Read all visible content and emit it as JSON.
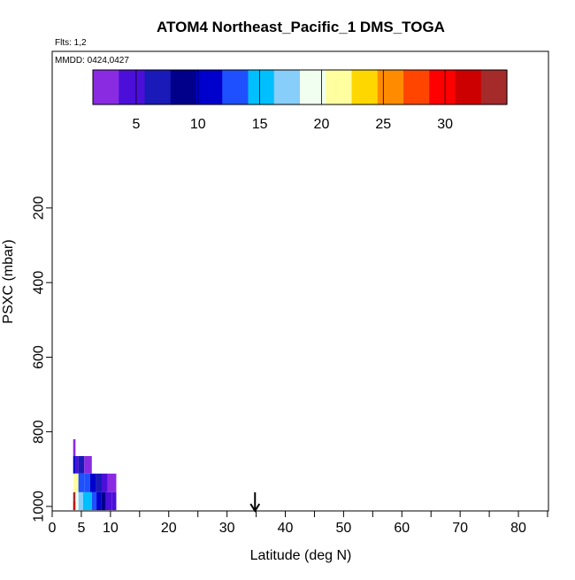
{
  "chart_data": {
    "type": "heatmap",
    "title": "ATOM4 Northeast_Pacific_1 DMS_TOGA",
    "flights_label": "Flts: 1,2",
    "dates_label": "MMDD: 0424,0427",
    "xlabel": "Latitude (deg N)",
    "ylabel": "PSXC (mbar)",
    "xlim": [
      0,
      85
    ],
    "ylim": [
      1010,
      0
    ],
    "x_ticks": [
      0,
      5,
      10,
      20,
      30,
      40,
      50,
      60,
      70,
      80
    ],
    "x_minor_ticks": [
      15,
      25,
      35,
      45,
      55,
      65,
      75,
      85
    ],
    "y_ticks": [
      200,
      400,
      600,
      800,
      1000
    ],
    "colorbar": {
      "range": [
        1.5,
        35
      ],
      "ticks": [
        5,
        10,
        15,
        20,
        25,
        30
      ],
      "colors": [
        "#8a2be2",
        "#4b0fd9",
        "#1a1ab8",
        "#00008b",
        "#0000cd",
        "#1e50ff",
        "#00bfff",
        "#87cefa",
        "#f0fff0",
        "#ffffa0",
        "#ffd700",
        "#ff8c00",
        "#ff4500",
        "#ff0000",
        "#cd0000",
        "#a52a2a"
      ]
    },
    "cells": [
      {
        "lat0": 3.6,
        "lat1": 4.0,
        "p0": 820,
        "p1": 865,
        "value": 3.0
      },
      {
        "lat0": 3.6,
        "lat1": 4.0,
        "p0": 865,
        "p1": 912,
        "value": 10.5
      },
      {
        "lat0": 4.0,
        "lat1": 4.5,
        "p0": 865,
        "p1": 912,
        "value": 4.0
      },
      {
        "lat0": 4.5,
        "lat1": 5.5,
        "p0": 865,
        "p1": 912,
        "value": 6.0
      },
      {
        "lat0": 5.5,
        "lat1": 6.8,
        "p0": 865,
        "p1": 912,
        "value": 3.5
      },
      {
        "lat0": 3.6,
        "lat1": 4.5,
        "p0": 912,
        "p1": 962,
        "value": 20.5
      },
      {
        "lat0": 4.5,
        "lat1": 5.5,
        "p0": 912,
        "p1": 962,
        "value": 13.0
      },
      {
        "lat0": 5.5,
        "lat1": 6.5,
        "p0": 912,
        "p1": 962,
        "value": 12.0
      },
      {
        "lat0": 6.5,
        "lat1": 7.5,
        "p0": 912,
        "p1": 962,
        "value": 10.0
      },
      {
        "lat0": 7.5,
        "lat1": 8.5,
        "p0": 912,
        "p1": 962,
        "value": 7.0
      },
      {
        "lat0": 8.5,
        "lat1": 9.5,
        "p0": 912,
        "p1": 962,
        "value": 5.0
      },
      {
        "lat0": 9.5,
        "lat1": 11.0,
        "p0": 912,
        "p1": 962,
        "value": 2.0
      },
      {
        "lat0": 3.6,
        "lat1": 4.0,
        "p0": 962,
        "p1": 985,
        "value": 33.0
      },
      {
        "lat0": 3.6,
        "lat1": 4.0,
        "p0": 985,
        "p1": 1010,
        "value": 31.0
      },
      {
        "lat0": 4.0,
        "lat1": 4.5,
        "p0": 962,
        "p1": 1010,
        "value": 19.5
      },
      {
        "lat0": 4.5,
        "lat1": 5.3,
        "p0": 962,
        "p1": 1010,
        "value": 18.0
      },
      {
        "lat0": 5.3,
        "lat1": 6.0,
        "p0": 962,
        "p1": 1010,
        "value": 16.0
      },
      {
        "lat0": 6.0,
        "lat1": 6.8,
        "p0": 962,
        "p1": 1010,
        "value": 14.5
      },
      {
        "lat0": 6.8,
        "lat1": 7.6,
        "p0": 962,
        "p1": 1010,
        "value": 12.5
      },
      {
        "lat0": 7.6,
        "lat1": 8.4,
        "p0": 962,
        "p1": 1010,
        "value": 11.0
      },
      {
        "lat0": 8.4,
        "lat1": 9.2,
        "p0": 962,
        "p1": 1010,
        "value": 9.0
      },
      {
        "lat0": 9.2,
        "lat1": 10.2,
        "p0": 962,
        "p1": 1010,
        "value": 5.5
      },
      {
        "lat0": 10.2,
        "lat1": 11.0,
        "p0": 962,
        "p1": 1010,
        "value": 4.0
      }
    ],
    "arrow": {
      "lat": 34.8,
      "direction": "down"
    }
  }
}
